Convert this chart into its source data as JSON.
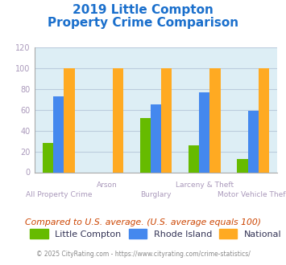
{
  "title_line1": "2019 Little Compton",
  "title_line2": "Property Crime Comparison",
  "title_color": "#1a6fcc",
  "categories": [
    "All Property Crime",
    "Arson",
    "Burglary",
    "Larceny & Theft",
    "Motor Vehicle Theft"
  ],
  "little_compton": [
    28,
    0,
    52,
    26,
    13
  ],
  "rhode_island": [
    73,
    0,
    65,
    77,
    59
  ],
  "national": [
    100,
    100,
    100,
    100,
    100
  ],
  "bar_colors": {
    "little_compton": "#66bb00",
    "rhode_island": "#4488ee",
    "national": "#ffaa22"
  },
  "ylim": [
    0,
    120
  ],
  "yticks": [
    0,
    20,
    40,
    60,
    80,
    100,
    120
  ],
  "legend_labels": [
    "Little Compton",
    "Rhode Island",
    "National"
  ],
  "note_text": "Compared to U.S. average. (U.S. average equals 100)",
  "note_color": "#cc4400",
  "copyright_text": "© 2025 CityRating.com - https://www.cityrating.com/crime-statistics/",
  "copyright_color": "#888888",
  "plot_bg_color": "#ddeef5",
  "grid_color": "#bbccdd",
  "tick_label_color": "#aa99bb",
  "bar_width": 0.22
}
